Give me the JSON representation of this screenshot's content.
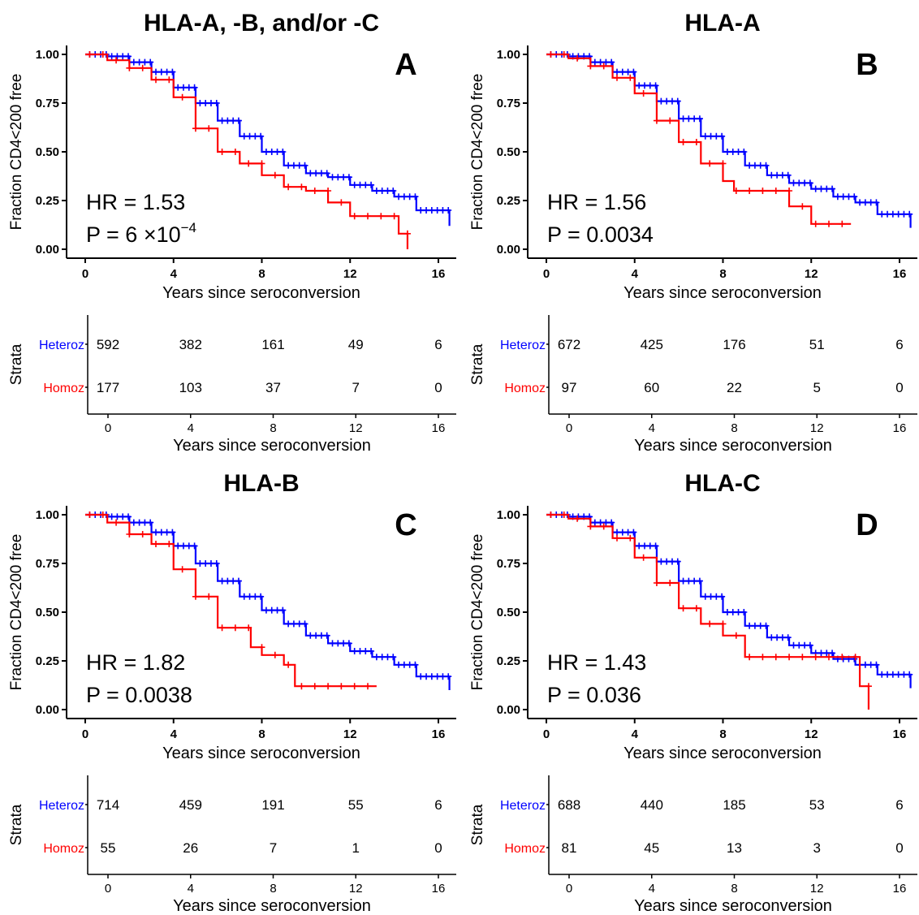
{
  "colors": {
    "heteroz": "#0000ff",
    "homoz": "#ff0000",
    "axis": "#000000"
  },
  "chart_data": [
    {
      "type": "line",
      "title": "HLA-A, -B, and/or -C",
      "panel_letter": "A",
      "xlabel": "Years since seroconversion",
      "ylabel": "Fraction CD4<200 free",
      "xlim": [
        0,
        16.8
      ],
      "ylim": [
        0,
        1
      ],
      "x_ticks": [
        "0",
        "4",
        "8",
        "12",
        "16"
      ],
      "y_ticks": [
        "0.00",
        "0.25",
        "0.50",
        "0.75",
        "1.00"
      ],
      "hr_text": "HR = 1.53",
      "p_prefix": "P =",
      "p_value": "6 ×10",
      "p_exponent": "−4",
      "series": [
        {
          "name": "Heteroz",
          "x": [
            0,
            1,
            2,
            3,
            4,
            5,
            6,
            7,
            8,
            9,
            10,
            11,
            12,
            13,
            14,
            15,
            15.5,
            16,
            16.5
          ],
          "y": [
            1.0,
            0.99,
            0.96,
            0.91,
            0.83,
            0.75,
            0.66,
            0.58,
            0.5,
            0.43,
            0.39,
            0.37,
            0.33,
            0.3,
            0.27,
            0.2,
            0.2,
            0.2,
            0.12
          ]
        },
        {
          "name": "Homoz",
          "x": [
            0,
            1,
            2,
            3,
            4,
            5,
            6,
            7,
            8,
            9,
            10,
            11,
            12,
            13,
            14,
            14.2,
            14.6
          ],
          "y": [
            1.0,
            0.97,
            0.93,
            0.87,
            0.78,
            0.62,
            0.5,
            0.44,
            0.38,
            0.32,
            0.3,
            0.24,
            0.17,
            0.17,
            0.17,
            0.08,
            0.0
          ]
        }
      ],
      "risk_table": {
        "ylabel": "Strata",
        "xlabel": "Years since seroconversion",
        "x_ticks": [
          "0",
          "4",
          "8",
          "12",
          "16"
        ],
        "rows": [
          {
            "label": "Heteroz",
            "values": [
              "592",
              "382",
              "161",
              "49",
              "6"
            ]
          },
          {
            "label": "Homoz",
            "values": [
              "177",
              "103",
              "37",
              "7",
              "0"
            ]
          }
        ]
      }
    },
    {
      "type": "line",
      "title": "HLA-A",
      "panel_letter": "B",
      "xlabel": "Years since seroconversion",
      "ylabel": "Fraction CD4<200 free",
      "xlim": [
        0,
        16.8
      ],
      "ylim": [
        0,
        1
      ],
      "x_ticks": [
        "0",
        "4",
        "8",
        "12",
        "16"
      ],
      "y_ticks": [
        "0.00",
        "0.25",
        "0.50",
        "0.75",
        "1.00"
      ],
      "hr_text": "HR = 1.56",
      "p_prefix": "P =",
      "p_value": "0.0034",
      "p_exponent": "",
      "series": [
        {
          "name": "Heteroz",
          "x": [
            0,
            1,
            2,
            3,
            4,
            5,
            6,
            7,
            8,
            9,
            10,
            11,
            12,
            13,
            14,
            15,
            16,
            16.5
          ],
          "y": [
            1.0,
            0.99,
            0.96,
            0.91,
            0.84,
            0.76,
            0.67,
            0.58,
            0.5,
            0.43,
            0.38,
            0.34,
            0.31,
            0.27,
            0.24,
            0.18,
            0.18,
            0.11
          ]
        },
        {
          "name": "Homoz",
          "x": [
            0,
            1,
            2,
            3,
            4,
            5,
            6,
            7,
            8,
            8.5,
            9,
            10,
            11,
            12,
            13,
            13.8
          ],
          "y": [
            1.0,
            0.98,
            0.94,
            0.88,
            0.8,
            0.66,
            0.55,
            0.44,
            0.35,
            0.3,
            0.3,
            0.3,
            0.22,
            0.13,
            0.13,
            0.13
          ]
        }
      ],
      "risk_table": {
        "ylabel": "Strata",
        "xlabel": "Years since seroconversion",
        "x_ticks": [
          "0",
          "4",
          "8",
          "12",
          "16"
        ],
        "rows": [
          {
            "label": "Heteroz",
            "values": [
              "672",
              "425",
              "176",
              "51",
              "6"
            ]
          },
          {
            "label": "Homoz",
            "values": [
              "97",
              "60",
              "22",
              "5",
              "0"
            ]
          }
        ]
      }
    },
    {
      "type": "line",
      "title": "HLA-B",
      "panel_letter": "C",
      "xlabel": "Years since seroconversion",
      "ylabel": "Fraction CD4<200 free",
      "xlim": [
        0,
        16.8
      ],
      "ylim": [
        0,
        1
      ],
      "x_ticks": [
        "0",
        "4",
        "8",
        "12",
        "16"
      ],
      "y_ticks": [
        "0.00",
        "0.25",
        "0.50",
        "0.75",
        "1.00"
      ],
      "hr_text": "HR = 1.82",
      "p_prefix": "P =",
      "p_value": "0.0038",
      "p_exponent": "",
      "series": [
        {
          "name": "Heteroz",
          "x": [
            0,
            1,
            2,
            3,
            4,
            5,
            6,
            7,
            8,
            9,
            10,
            11,
            12,
            13,
            14,
            15,
            16,
            16.5
          ],
          "y": [
            1.0,
            0.99,
            0.96,
            0.91,
            0.84,
            0.75,
            0.66,
            0.58,
            0.51,
            0.44,
            0.38,
            0.34,
            0.3,
            0.27,
            0.23,
            0.17,
            0.17,
            0.1
          ]
        },
        {
          "name": "Homoz",
          "x": [
            0,
            1,
            2,
            3,
            4,
            5,
            6,
            7,
            7.5,
            8,
            9,
            9.5,
            10,
            11,
            12,
            13.2
          ],
          "y": [
            1.0,
            0.96,
            0.9,
            0.85,
            0.72,
            0.58,
            0.42,
            0.42,
            0.32,
            0.28,
            0.23,
            0.12,
            0.12,
            0.12,
            0.12,
            0.12
          ]
        }
      ],
      "risk_table": {
        "ylabel": "Strata",
        "xlabel": "Years since seroconversion",
        "x_ticks": [
          "0",
          "4",
          "8",
          "12",
          "16"
        ],
        "rows": [
          {
            "label": "Heteroz",
            "values": [
              "714",
              "459",
              "191",
              "55",
              "6"
            ]
          },
          {
            "label": "Homoz",
            "values": [
              "55",
              "26",
              "7",
              "1",
              "0"
            ]
          }
        ]
      }
    },
    {
      "type": "line",
      "title": "HLA-C",
      "panel_letter": "D",
      "xlabel": "Years since seroconversion",
      "ylabel": "Fraction CD4<200 free",
      "xlim": [
        0,
        16.8
      ],
      "ylim": [
        0,
        1
      ],
      "x_ticks": [
        "0",
        "4",
        "8",
        "12",
        "16"
      ],
      "y_ticks": [
        "0.00",
        "0.25",
        "0.50",
        "0.75",
        "1.00"
      ],
      "hr_text": "HR = 1.43",
      "p_prefix": "P =",
      "p_value": "0.036",
      "p_exponent": "",
      "series": [
        {
          "name": "Heteroz",
          "x": [
            0,
            1,
            2,
            3,
            4,
            5,
            6,
            7,
            8,
            9,
            10,
            11,
            12,
            13,
            14,
            15,
            16,
            16.5
          ],
          "y": [
            1.0,
            0.99,
            0.96,
            0.91,
            0.84,
            0.76,
            0.66,
            0.58,
            0.5,
            0.43,
            0.37,
            0.33,
            0.29,
            0.26,
            0.23,
            0.18,
            0.18,
            0.11
          ]
        },
        {
          "name": "Homoz",
          "x": [
            0,
            1,
            2,
            3,
            4,
            5,
            6,
            7,
            8,
            9,
            10,
            11,
            12,
            13,
            14,
            14.2,
            14.6
          ],
          "y": [
            1.0,
            0.98,
            0.94,
            0.88,
            0.78,
            0.65,
            0.52,
            0.44,
            0.38,
            0.27,
            0.27,
            0.27,
            0.27,
            0.27,
            0.27,
            0.12,
            0.0
          ]
        }
      ],
      "risk_table": {
        "ylabel": "Strata",
        "xlabel": "Years since seroconversion",
        "x_ticks": [
          "0",
          "4",
          "8",
          "12",
          "16"
        ],
        "rows": [
          {
            "label": "Heteroz",
            "values": [
              "688",
              "440",
              "185",
              "53",
              "6"
            ]
          },
          {
            "label": "Homoz",
            "values": [
              "81",
              "45",
              "13",
              "3",
              "0"
            ]
          }
        ]
      }
    }
  ]
}
